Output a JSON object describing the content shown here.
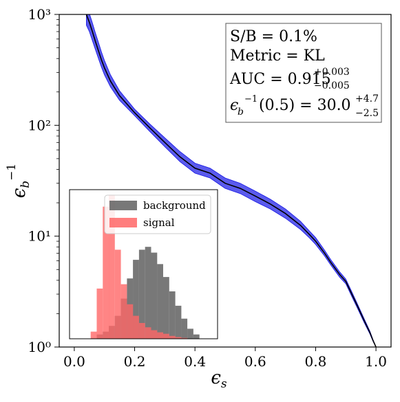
{
  "chart_data": [
    {
      "type": "line",
      "xlabel": "ϵs",
      "ylabel": "ϵb⁻¹",
      "xlim": [
        -0.05,
        1.05
      ],
      "ylim": [
        1,
        1000
      ],
      "yscale": "log",
      "grid": false,
      "xticks": [
        0.0,
        0.2,
        0.4,
        0.6,
        0.8,
        1.0
      ],
      "xtick_labels": [
        "0.0",
        "0.2",
        "0.4",
        "0.6",
        "0.8",
        "1.0"
      ],
      "ytick_labels": [
        "10⁰",
        "10¹",
        "10²",
        "10³"
      ],
      "series": [
        {
          "color": "#000000",
          "band_color": "#1515e6",
          "x": [
            0.04,
            0.05,
            0.06,
            0.07,
            0.08,
            0.09,
            0.1,
            0.12,
            0.15,
            0.2,
            0.25,
            0.3,
            0.35,
            0.4,
            0.45,
            0.5,
            0.55,
            0.6,
            0.65,
            0.7,
            0.75,
            0.78,
            0.8,
            0.83,
            0.85,
            0.88,
            0.9,
            0.92,
            0.94,
            0.96,
            0.98,
            0.99,
            1.0
          ],
          "y": [
            1000,
            850,
            700,
            570,
            470,
            390,
            330,
            250,
            185,
            130,
            95,
            70,
            52,
            41,
            37,
            30,
            27,
            23,
            19.5,
            16,
            12.5,
            10.3,
            9.0,
            7.0,
            5.8,
            4.5,
            3.9,
            3.0,
            2.3,
            1.75,
            1.35,
            1.15,
            1.0
          ],
          "band_lower": [
            800,
            700,
            580,
            480,
            400,
            335,
            285,
            222,
            168,
            122,
            88,
            64,
            47,
            37,
            33.5,
            27,
            24.2,
            20.5,
            17.6,
            14.5,
            11.5,
            9.6,
            8.4,
            6.6,
            5.5,
            4.25,
            3.72,
            2.85,
            2.2,
            1.68,
            1.31,
            1.13,
            1.0
          ],
          "band_upper": [
            1200,
            1020,
            840,
            680,
            560,
            460,
            385,
            285,
            205,
            140,
            103,
            77,
            58,
            45.5,
            41,
            33.5,
            30,
            25.5,
            21.5,
            17.6,
            13.6,
            11.1,
            9.7,
            7.45,
            6.15,
            4.75,
            4.1,
            3.15,
            2.4,
            1.82,
            1.39,
            1.17,
            1.0
          ]
        }
      ],
      "annotation": {
        "line1": "S/B = 0.1%",
        "line2": "Metric = KL",
        "line3_main": "AUC = 0.915",
        "line3_sup": "+0.003",
        "line3_sub": "−0.005",
        "line4_main": "(0.5) = 30.0",
        "line4_eps": "ϵ",
        "line4_b": "b",
        "line4_inv": "−1",
        "line4_sup": "+4.7",
        "line4_sub": "−2.5"
      }
    },
    {
      "type": "histogram",
      "inset": true,
      "legend_position": "top-right",
      "bins": [
        0.0,
        0.02,
        0.04,
        0.06,
        0.08,
        0.1,
        0.12,
        0.14,
        0.16,
        0.18,
        0.2,
        0.22,
        0.24,
        0.26,
        0.28,
        0.3,
        0.32,
        0.34,
        0.36,
        0.38,
        0.4
      ],
      "series": [
        {
          "name": "background",
          "color": "#606060",
          "values": [
            0,
            0,
            0,
            0.03,
            0.05,
            0.09,
            0.16,
            0.28,
            0.42,
            0.55,
            0.62,
            0.64,
            0.6,
            0.52,
            0.43,
            0.33,
            0.23,
            0.14,
            0.07,
            0.03,
            0.0
          ]
        },
        {
          "name": "signal",
          "color": "#ff6666",
          "values": [
            0,
            0,
            0.05,
            0.35,
            0.92,
            1.0,
            0.62,
            0.38,
            0.24,
            0.16,
            0.11,
            0.08,
            0.06,
            0.045,
            0.035,
            0.02,
            0.012,
            0.006,
            0.002,
            0.0,
            0.0
          ]
        }
      ]
    }
  ]
}
